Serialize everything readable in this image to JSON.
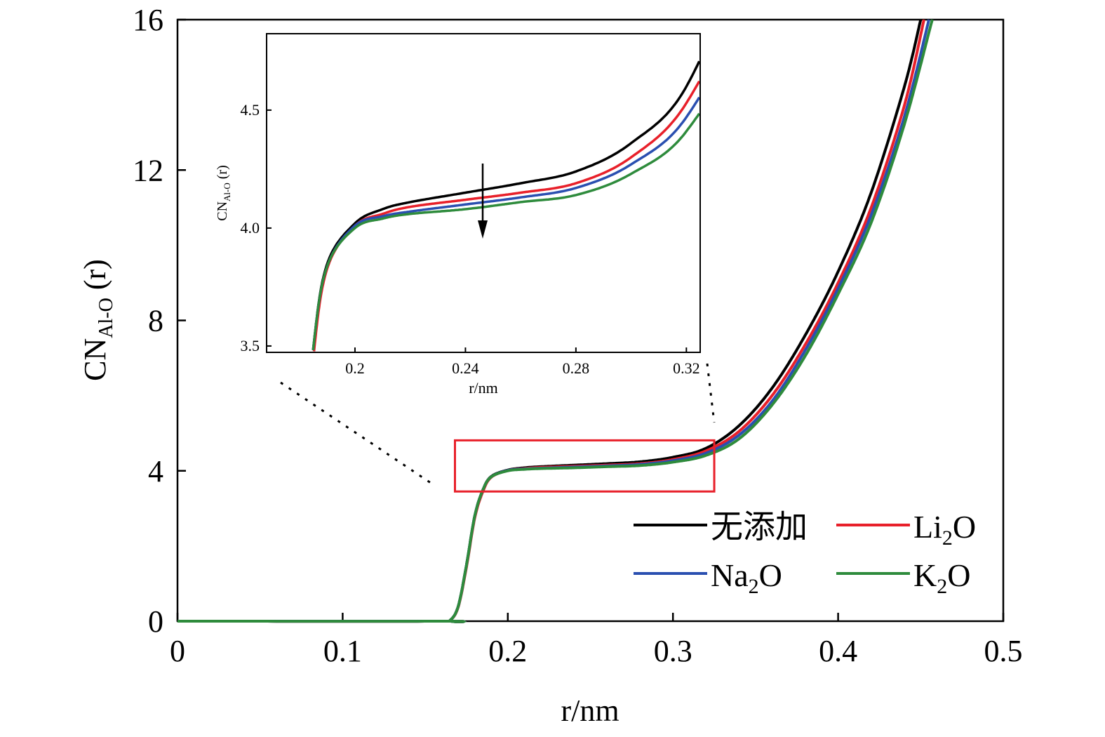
{
  "chart_data": {
    "type": "line",
    "xlabel": "r/nm",
    "ylabel": "CN",
    "ylabel_sub": "Al-O",
    "ylabel_suffix": " (r)",
    "xlim": [
      0,
      0.5
    ],
    "ylim": [
      0,
      16
    ],
    "xticks": [
      "0",
      "0.1",
      "0.2",
      "0.3",
      "0.4",
      "0.5"
    ],
    "yticks": [
      "0",
      "4",
      "8",
      "12",
      "16"
    ],
    "grid": false,
    "legend_placement": "bottom-right",
    "series": [
      {
        "name": "无添加",
        "color": "#000000",
        "x": [
          0,
          0.16,
          0.165,
          0.17,
          0.175,
          0.18,
          0.185,
          0.19,
          0.2,
          0.21,
          0.22,
          0.24,
          0.26,
          0.28,
          0.3,
          0.32,
          0.34,
          0.36,
          0.38,
          0.4,
          0.42,
          0.44,
          0.45
        ],
        "y": [
          0,
          0,
          0.02,
          0.4,
          1.5,
          2.8,
          3.5,
          3.85,
          4.02,
          4.08,
          4.11,
          4.15,
          4.19,
          4.24,
          4.36,
          4.6,
          5.2,
          6.2,
          7.6,
          9.3,
          11.4,
          14.2,
          16
        ]
      },
      {
        "name": "Li2O",
        "color": "#e8202a",
        "x": [
          0,
          0.16,
          0.165,
          0.17,
          0.175,
          0.18,
          0.185,
          0.19,
          0.2,
          0.21,
          0.22,
          0.24,
          0.26,
          0.28,
          0.3,
          0.32,
          0.34,
          0.36,
          0.38,
          0.4,
          0.42,
          0.44,
          0.452
        ],
        "y": [
          0,
          0,
          0.02,
          0.38,
          1.45,
          2.75,
          3.46,
          3.83,
          4.01,
          4.06,
          4.09,
          4.12,
          4.15,
          4.19,
          4.3,
          4.53,
          5.05,
          6.0,
          7.35,
          9.0,
          11.0,
          13.7,
          16
        ]
      },
      {
        "name": "Na2O",
        "color": "#2a4fb0",
        "x": [
          0,
          0.16,
          0.165,
          0.17,
          0.175,
          0.18,
          0.185,
          0.19,
          0.2,
          0.21,
          0.22,
          0.24,
          0.26,
          0.28,
          0.3,
          0.32,
          0.34,
          0.36,
          0.38,
          0.4,
          0.42,
          0.44,
          0.455
        ],
        "y": [
          0,
          0,
          0.02,
          0.4,
          1.5,
          2.8,
          3.5,
          3.84,
          4.01,
          4.05,
          4.07,
          4.1,
          4.13,
          4.17,
          4.27,
          4.47,
          4.95,
          5.85,
          7.2,
          8.85,
          10.8,
          13.4,
          16
        ]
      },
      {
        "name": "K2O",
        "color": "#2e8b3c",
        "x": [
          0,
          0.16,
          0.165,
          0.17,
          0.175,
          0.18,
          0.185,
          0.19,
          0.2,
          0.21,
          0.22,
          0.24,
          0.26,
          0.28,
          0.3,
          0.32,
          0.34,
          0.36,
          0.38,
          0.4,
          0.42,
          0.44,
          0.457
        ],
        "y": [
          0,
          0,
          0.02,
          0.4,
          1.5,
          2.8,
          3.5,
          3.84,
          4.0,
          4.04,
          4.06,
          4.08,
          4.11,
          4.14,
          4.23,
          4.41,
          4.85,
          5.75,
          7.05,
          8.7,
          10.6,
          13.2,
          16
        ]
      }
    ],
    "legend": [
      {
        "label": "无添加",
        "sub": "",
        "suffix": ""
      },
      {
        "label": "Li",
        "sub": "2",
        "suffix": "O"
      },
      {
        "label": "Na",
        "sub": "2",
        "suffix": "O"
      },
      {
        "label": "K",
        "sub": "2",
        "suffix": "O"
      }
    ],
    "inset": {
      "xlabel": "r/nm",
      "ylabel": "CN",
      "ylabel_sub": "Al-O",
      "ylabel_suffix": " (r)",
      "xlim": [
        0.168,
        0.325
      ],
      "ylim": [
        3.473,
        4.824
      ],
      "xticks": [
        "0.2",
        "0.24",
        "0.28",
        "0.32"
      ],
      "yticks": [
        "3.5",
        "4.0",
        "4.5"
      ],
      "zoom_box": {
        "x": [
          0.168,
          0.325
        ],
        "y": [
          3.45,
          4.81
        ],
        "color": "#e8202a"
      },
      "arrow": "decreasing"
    }
  }
}
